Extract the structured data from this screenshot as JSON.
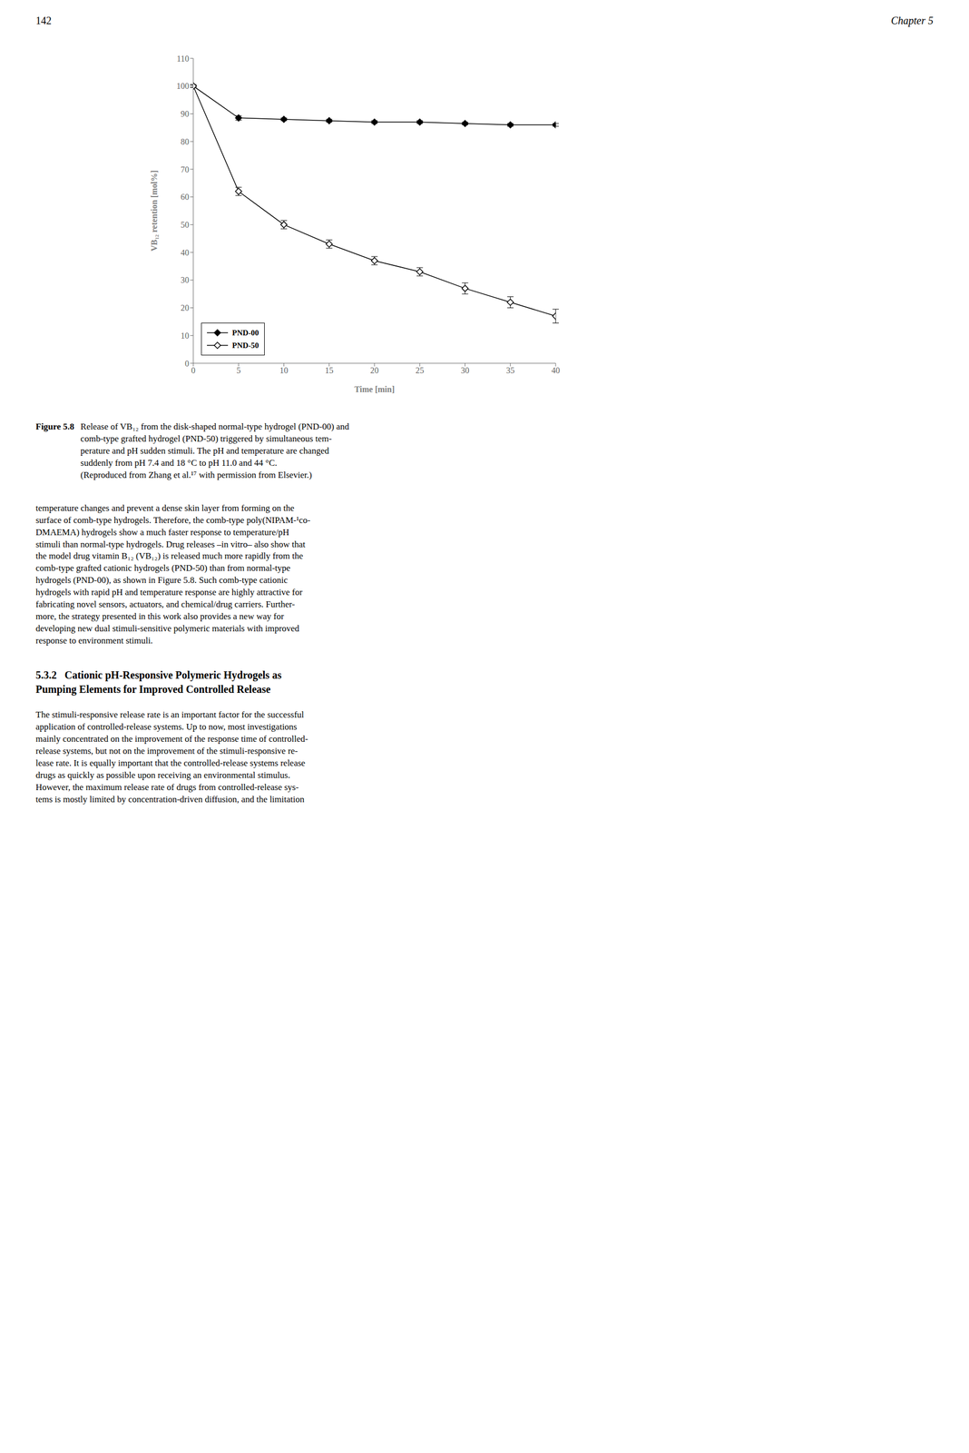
{
  "chart_data": {
    "type": "line",
    "xlabel": "Time [min]",
    "ylabel": "VB₁₂ retention [mol%]",
    "x": [
      0,
      5,
      10,
      15,
      20,
      25,
      30,
      35,
      40
    ],
    "series": [
      {
        "name": "PND-00",
        "color": "#000000",
        "marker": "diamond",
        "line_style": "solid",
        "values": [
          100,
          88.5,
          88,
          87.5,
          87,
          87,
          86.5,
          86,
          86
        ],
        "errors": [
          0.5,
          0.8,
          0.5,
          0.5,
          0.5,
          0.5,
          0.5,
          0.5,
          0.5
        ]
      },
      {
        "name": "PND-50",
        "color": "#000000",
        "marker": "open_diamond",
        "line_style": "solid",
        "values": [
          100,
          62,
          50,
          43,
          37,
          33,
          27,
          22,
          17
        ],
        "errors": [
          0.5,
          1.5,
          1.5,
          1.5,
          1.5,
          1.5,
          2.0,
          2.0,
          2.5
        ]
      }
    ],
    "xlim": [
      0,
      40
    ],
    "ylim": [
      0,
      110
    ],
    "xticks": [
      0,
      5,
      10,
      15,
      20,
      25,
      30,
      35,
      40
    ],
    "yticks": [
      0,
      10,
      20,
      30,
      40,
      50,
      60,
      70,
      80,
      90,
      100,
      110
    ],
    "grid": false,
    "legend": "lower left",
    "annotations": [
      "142",
      "Chapter 5",
      "Figure 5.8",
      "Release of VB₁₂ from the disk-shaped normal-type hydrogel (PND-00) and\ncomb-type grafted hydrogel (PND-50) triggered by simultaneous tem-\nperature and pH sudden stimuli. The pH and temperature are changed\nsuddenly from pH 7.4 and 18 °C to pH 11.0 and 44 °C.\n(Reproduced from Zhang et al.¹⁷ with permission from Elsevier.)",
      "temperature changes and prevent a dense skin layer from forming on the\nsurface of comb-type hydrogels. Therefore, the comb-type poly(NIPAM-¹co-\nDMAEMA) hydrogels show a much faster response to temperature/pH\nstimuli than normal-type hydrogels. Drug releases –in vitro– also show that\nthe model drug vitamin B₁₂ (VB₁₂) is released much more rapidly from the\ncomb-type grafted cationic hydrogels (PND-50) than from normal-type\nhydrogels (PND-00), as shown in Figure 5.8. Such comb-type cationic\nhydrogels with rapid pH and temperature response are highly attractive for\nfabricating novel sensors, actuators, and chemical/drug carriers. Further-\nmore, the strategy presented in this work also provides a new way for\ndeveloping new dual stimuli-sensitive polymeric materials with improved\nresponse to environment stimuli.",
      "5.3.2   Cationic pH-Responsive Polymeric Hydrogels as\nPumping Elements for Improved Controlled Release",
      "The stimuli-responsive release rate is an important factor for the successful\napplication of controlled-release systems. Up to now, most investigations\nmainly concentrated on the improvement of the response time of controlled-\nrelease systems, but not on the improvement of the stimuli-responsive re-\nlease rate. It is equally important that the controlled-release systems release\ndrugs as quickly as possible upon receiving an environmental stimulus.\nHowever, the maximum release rate of drugs from controlled-release sys-\ntems is mostly limited by concentration-driven diffusion, and the limitation"
    ]
  }
}
